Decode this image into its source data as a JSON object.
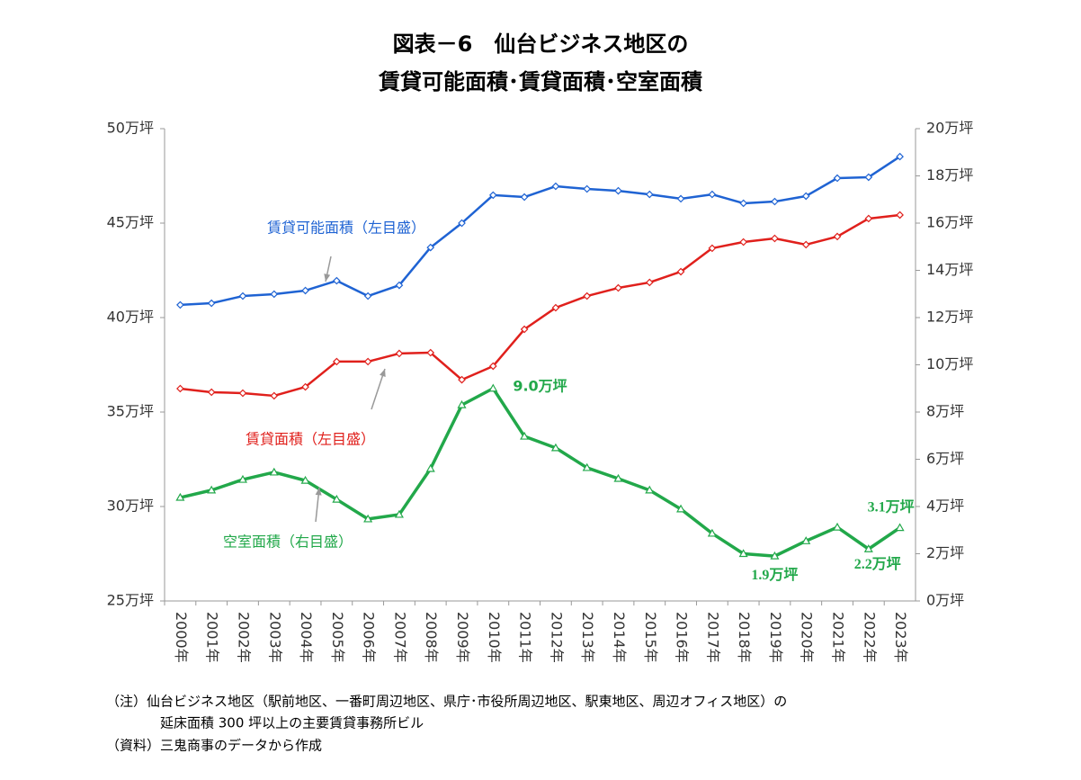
{
  "chart_data": {
    "type": "line",
    "title": [
      "図表－6　仙台ビジネス地区の",
      "賃貸可能面積･賃貸面積･空室面積"
    ],
    "categories": [
      "2000年",
      "2001年",
      "2002年",
      "2003年",
      "2004年",
      "2005年",
      "2006年",
      "2007年",
      "2008年",
      "2009年",
      "2010年",
      "2011年",
      "2012年",
      "2013年",
      "2014年",
      "2015年",
      "2016年",
      "2017年",
      "2018年",
      "2019年",
      "2020年",
      "2021年",
      "2022年",
      "2023年"
    ],
    "series": [
      {
        "name": "賃貸可能面積（左目盛）",
        "color": "#1f63d3",
        "marker": "diamond",
        "values": [
          40.67,
          40.76,
          41.14,
          41.24,
          41.43,
          41.95,
          41.14,
          41.71,
          43.71,
          45.0,
          46.48,
          46.38,
          46.95,
          46.81,
          46.71,
          46.52,
          46.29,
          46.52,
          46.05,
          46.14,
          46.43,
          47.38,
          47.43,
          48.52
        ]
      },
      {
        "name": "賃貸面積（左目盛）",
        "color": "#e0201c",
        "marker": "diamond",
        "values": [
          36.24,
          36.05,
          36.0,
          35.86,
          36.33,
          37.67,
          37.67,
          38.1,
          38.14,
          36.71,
          37.43,
          39.38,
          40.52,
          41.14,
          41.57,
          41.86,
          42.43,
          43.67,
          44.0,
          44.19,
          43.86,
          44.29,
          45.24,
          45.43
        ]
      },
      {
        "name": "空室面積（右目盛）",
        "color": "#22a84a",
        "marker": "triangle",
        "axis": "y2",
        "values": [
          4.38,
          4.69,
          5.14,
          5.45,
          5.1,
          4.3,
          3.47,
          3.66,
          5.6,
          8.3,
          9.0,
          6.97,
          6.48,
          5.64,
          5.18,
          4.69,
          3.89,
          2.86,
          2.0,
          1.9,
          2.54,
          3.12,
          2.2,
          3.1
        ],
        "value_labels": [
          null,
          null,
          null,
          null,
          null,
          null,
          null,
          null,
          null,
          null,
          "9.0万坪",
          null,
          null,
          null,
          null,
          null,
          null,
          null,
          null,
          "1.9万坪",
          null,
          null,
          "2.2万坪",
          "3.1万坪"
        ]
      }
    ],
    "ylim": [
      25,
      50
    ],
    "yticks": [
      {
        "value": 25,
        "label": "25万坪"
      },
      {
        "value": 30,
        "label": "30万坪"
      },
      {
        "value": 35,
        "label": "35万坪"
      },
      {
        "value": 40,
        "label": "40万坪"
      },
      {
        "value": 45,
        "label": "45万坪"
      },
      {
        "value": 50,
        "label": "50万坪"
      }
    ],
    "y2lim": [
      0,
      20
    ],
    "y2ticks": [
      {
        "value": 0,
        "label": "0万坪"
      },
      {
        "value": 2,
        "label": "2万坪"
      },
      {
        "value": 4,
        "label": "4万坪"
      },
      {
        "value": 6,
        "label": "6万坪"
      },
      {
        "value": 8,
        "label": "8万坪"
      },
      {
        "value": 10,
        "label": "10万坪"
      },
      {
        "value": 12,
        "label": "12万坪"
      },
      {
        "value": 14,
        "label": "14万坪"
      },
      {
        "value": 16,
        "label": "16万坪"
      },
      {
        "value": 18,
        "label": "18万坪"
      },
      {
        "value": 20,
        "label": "20万坪"
      }
    ],
    "grid": false,
    "notes": [
      "（注）仙台ビジネス地区（駅前地区、一番町周辺地区、県庁･市役所周辺地区、駅東地区、周辺オフィス地区）の",
      "延床面積 300 坪以上の主要賃貸事務所ビル",
      "（資料）三鬼商事のデータから作成"
    ]
  }
}
